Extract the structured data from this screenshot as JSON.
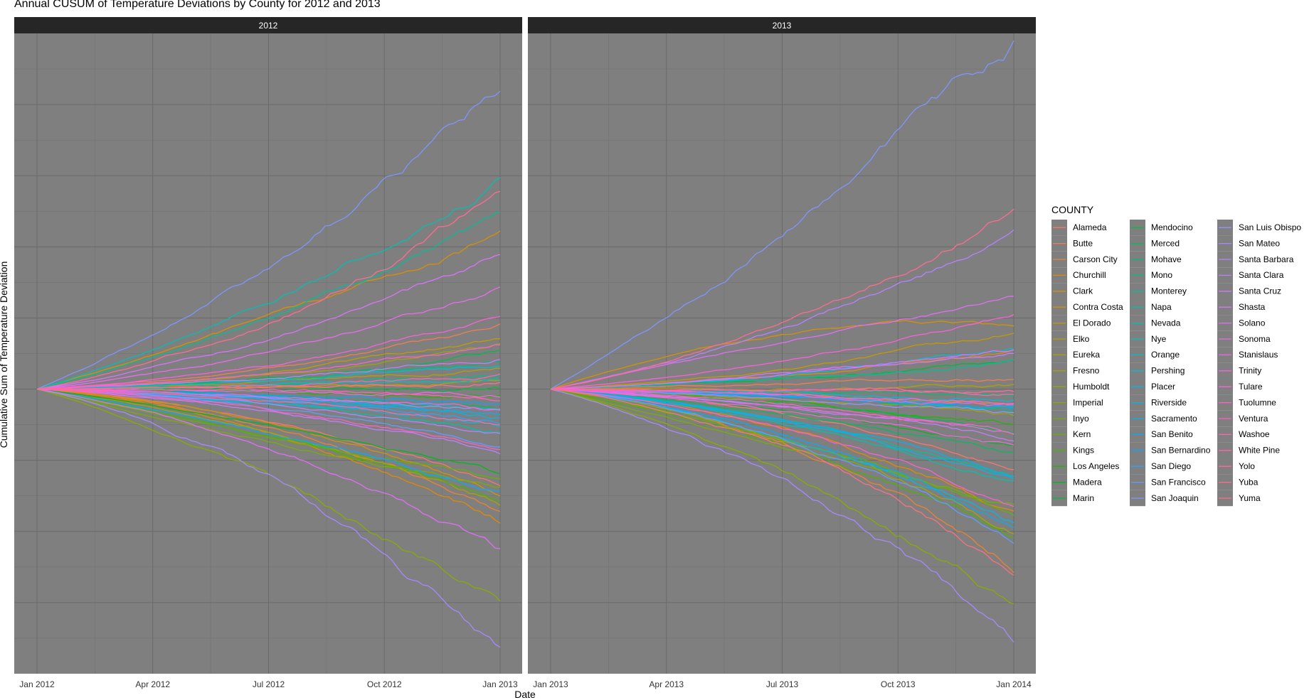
{
  "title": "Annual CUSUM of Temperature Deviations by County for 2012 and 2013",
  "colors": {
    "panel_background": "#7f7f7f",
    "strip_background": "#262626",
    "strip_text": "#ffffff"
  },
  "chart_data": {
    "type": "line",
    "facets": [
      "2012",
      "2013"
    ],
    "xlabel": "Date",
    "ylabel": "Cumulative Sum of Temperature Deviation",
    "y_tick_labels_shown": false,
    "grid": true,
    "legend": {
      "title": "COUNTY",
      "placement": "right",
      "columns": 3
    },
    "ylim": [
      -400,
      500
    ],
    "y_gridlines": [
      -300,
      -200,
      -100,
      0,
      100,
      200,
      300,
      400
    ],
    "panels": [
      {
        "facet": "2012",
        "x_ticks": [
          "Jan 2012",
          "Apr 2012",
          "Jul 2012",
          "Oct 2012",
          "Jan 2013"
        ]
      },
      {
        "facet": "2013",
        "x_ticks": [
          "Jan 2013",
          "Apr 2013",
          "Jul 2013",
          "Oct 2013",
          "Jan 2014"
        ]
      }
    ],
    "series": [
      {
        "name": "Alameda",
        "color": "#F8766D",
        "end2012": -135,
        "end2013": -110,
        "mid2012": -40,
        "mid2013": -30
      },
      {
        "name": "Butte",
        "color": "#F27D53",
        "end2012": 90,
        "end2013": 15,
        "mid2012": 25,
        "mid2013": 10
      },
      {
        "name": "Carson City",
        "color": "#EA8331",
        "end2012": -170,
        "end2013": -245,
        "mid2012": -45,
        "mid2013": -60
      },
      {
        "name": "Churchill",
        "color": "#E38900",
        "end2012": -185,
        "end2013": -175,
        "mid2012": -50,
        "mid2013": -45
      },
      {
        "name": "Clark",
        "color": "#D89000",
        "end2012": 215,
        "end2013": 90,
        "mid2012": 120,
        "mid2013": 120
      },
      {
        "name": "Contra Costa",
        "color": "#CF9400",
        "end2012": -150,
        "end2013": 50,
        "mid2012": -40,
        "mid2013": 20
      },
      {
        "name": "El Dorado",
        "color": "#C49A00",
        "end2012": 70,
        "end2013": 80,
        "mid2012": 20,
        "mid2013": 25
      },
      {
        "name": "Elko",
        "color": "#BA9E00",
        "end2012": 10,
        "end2013": -20,
        "mid2012": 5,
        "mid2013": -5
      },
      {
        "name": "Eureka",
        "color": "#AEA200",
        "end2012": 30,
        "end2013": 5,
        "mid2012": 10,
        "mid2013": 2
      },
      {
        "name": "Fresno",
        "color": "#A3A500",
        "end2012": -160,
        "end2013": -200,
        "mid2012": -60,
        "mid2013": -70
      },
      {
        "name": "Humboldt",
        "color": "#96A900",
        "end2012": 60,
        "end2013": -40,
        "mid2012": 20,
        "mid2013": -15
      },
      {
        "name": "Imperial",
        "color": "#87AC00",
        "end2012": -305,
        "end2013": -305,
        "mid2012": -130,
        "mid2013": -120
      },
      {
        "name": "Inyo",
        "color": "#77AF00",
        "end2012": -140,
        "end2013": -160,
        "mid2012": -95,
        "mid2013": -100
      },
      {
        "name": "Kern",
        "color": "#64B200",
        "end2012": -130,
        "end2013": -170,
        "mid2012": -85,
        "mid2013": -80
      },
      {
        "name": "Kings",
        "color": "#4BB400",
        "end2012": -150,
        "end2013": -205,
        "mid2012": -75,
        "mid2013": -85
      },
      {
        "name": "Los Angeles",
        "color": "#20B600",
        "end2012": -10,
        "end2013": -50,
        "mid2012": -5,
        "mid2013": -20
      },
      {
        "name": "Madera",
        "color": "#00B81D",
        "end2012": -120,
        "end2013": -80,
        "mid2012": -55,
        "mid2013": -30
      },
      {
        "name": "Marin",
        "color": "#00BA38",
        "end2012": 0,
        "end2013": 40,
        "mid2012": 0,
        "mid2013": 15
      },
      {
        "name": "Mendocino",
        "color": "#00BB4E",
        "end2012": 50,
        "end2013": -60,
        "mid2012": 15,
        "mid2013": -20
      },
      {
        "name": "Merced",
        "color": "#00BC62",
        "end2012": -25,
        "end2013": -90,
        "mid2012": -10,
        "mid2013": -35
      },
      {
        "name": "Mohave",
        "color": "#00BD74",
        "end2012": 40,
        "end2013": -10,
        "mid2012": 15,
        "mid2013": -5
      },
      {
        "name": "Mono",
        "color": "#00BF85",
        "end2012": 20,
        "end2013": -30,
        "mid2012": 5,
        "mid2013": -10
      },
      {
        "name": "Monterey",
        "color": "#00BF95",
        "end2012": 250,
        "end2013": 40,
        "mid2012": 110,
        "mid2013": 15
      },
      {
        "name": "Napa",
        "color": "#00C0A3",
        "end2012": -60,
        "end2013": -120,
        "mid2012": -20,
        "mid2013": -40
      },
      {
        "name": "Nevada",
        "color": "#00C0B2",
        "end2012": 295,
        "end2013": -130,
        "mid2012": 135,
        "mid2013": -45
      },
      {
        "name": "Nye",
        "color": "#00BFC0",
        "end2012": 15,
        "end2013": -25,
        "mid2012": 5,
        "mid2013": -10
      },
      {
        "name": "Orange",
        "color": "#00BECC",
        "end2012": -30,
        "end2013": 60,
        "mid2012": -10,
        "mid2013": 20
      },
      {
        "name": "Pershing",
        "color": "#00BCD8",
        "end2012": 35,
        "end2013": -15,
        "mid2012": 12,
        "mid2013": -5
      },
      {
        "name": "Placer",
        "color": "#00B9E3",
        "end2012": -50,
        "end2013": -190,
        "mid2012": -20,
        "mid2013": -60
      },
      {
        "name": "Riverside",
        "color": "#00B6EB",
        "end2012": -40,
        "end2013": -125,
        "mid2012": -15,
        "mid2013": -45
      },
      {
        "name": "Sacramento",
        "color": "#00B2F3",
        "end2012": -35,
        "end2013": -120,
        "mid2012": -12,
        "mid2013": -40
      },
      {
        "name": "San Benito",
        "color": "#00ADFA",
        "end2012": -150,
        "end2013": -195,
        "mid2012": -70,
        "mid2013": -55
      },
      {
        "name": "San Bernardino",
        "color": "#00A8FF",
        "end2012": -20,
        "end2013": -30,
        "mid2012": -8,
        "mid2013": -10
      },
      {
        "name": "San Diego",
        "color": "#2BA2FF",
        "end2012": -45,
        "end2013": -25,
        "mid2012": -15,
        "mid2013": -10
      },
      {
        "name": "San Francisco",
        "color": "#619CFF",
        "end2012": -80,
        "end2013": -215,
        "mid2012": -20,
        "mid2013": -60
      },
      {
        "name": "San Joaquin",
        "color": "#7E96FF",
        "end2012": 420,
        "end2013": 485,
        "mid2012": 190,
        "mid2013": 260
      },
      {
        "name": "San Luis Obispo",
        "color": "#9590FF",
        "end2012": -30,
        "end2013": -35,
        "mid2012": -10,
        "mid2013": -12
      },
      {
        "name": "San Mateo",
        "color": "#A789FF",
        "end2012": -370,
        "end2013": -350,
        "mid2012": -110,
        "mid2013": -130
      },
      {
        "name": "Santa Barbara",
        "color": "#B682FF",
        "end2012": -60,
        "end2013": 220,
        "mid2012": -20,
        "mid2013": 90
      },
      {
        "name": "Santa Clara",
        "color": "#C37CFF",
        "end2012": -90,
        "end2013": -70,
        "mid2012": -30,
        "mid2013": -25
      },
      {
        "name": "Santa Cruz",
        "color": "#CF77FF",
        "end2012": 45,
        "end2013": 55,
        "mid2012": 15,
        "mid2013": 20
      },
      {
        "name": "Shasta",
        "color": "#D973FD",
        "end2012": 190,
        "end2013": 55,
        "mid2012": 70,
        "mid2013": 20
      },
      {
        "name": "Solano",
        "color": "#E26EF7",
        "end2012": -230,
        "end2013": 125,
        "mid2012": -80,
        "mid2013": 85
      },
      {
        "name": "Sonoma",
        "color": "#EA6BF0",
        "end2012": 145,
        "end2013": -65,
        "mid2012": 50,
        "mid2013": -25
      },
      {
        "name": "Stanislaus",
        "color": "#F066E9",
        "end2012": -10,
        "end2013": -20,
        "mid2012": -3,
        "mid2013": -8
      },
      {
        "name": "Trinity",
        "color": "#F563E1",
        "end2012": -30,
        "end2013": -80,
        "mid2012": -10,
        "mid2013": -30
      },
      {
        "name": "Tulare",
        "color": "#F962D8",
        "end2012": 100,
        "end2013": 105,
        "mid2012": 30,
        "mid2013": 40
      },
      {
        "name": "Tuolumne",
        "color": "#FC61CE",
        "end2012": 65,
        "end2013": -165,
        "mid2012": 20,
        "mid2013": -50
      },
      {
        "name": "Ventura",
        "color": "#FE61C3",
        "end2012": -85,
        "end2013": -60,
        "mid2012": -25,
        "mid2013": -20
      },
      {
        "name": "Washoe",
        "color": "#FF62B8",
        "end2012": -10,
        "end2013": -25,
        "mid2012": -3,
        "mid2013": -8
      },
      {
        "name": "White Pine",
        "color": "#FF64AC",
        "end2012": 20,
        "end2013": -5,
        "mid2012": 5,
        "mid2013": -2
      },
      {
        "name": "Yolo",
        "color": "#FF689F",
        "end2012": -50,
        "end2013": -5,
        "mid2012": -15,
        "mid2013": -2
      },
      {
        "name": "Yuba",
        "color": "#FD6C91",
        "end2012": 275,
        "end2013": 255,
        "mid2012": 95,
        "mid2013": 95
      },
      {
        "name": "Yuma",
        "color": "#FA7183",
        "end2012": 10,
        "end2013": -250,
        "mid2012": 3,
        "mid2013": -70
      }
    ]
  }
}
